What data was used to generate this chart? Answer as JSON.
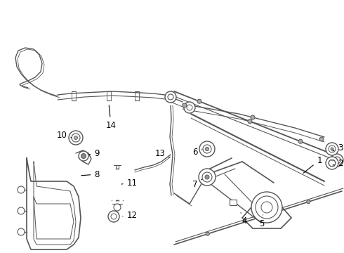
{
  "bg_color": "#ffffff",
  "line_color": "#555555",
  "dpi": 100,
  "fig_width": 4.9,
  "fig_height": 3.6,
  "font_size": 8.5
}
